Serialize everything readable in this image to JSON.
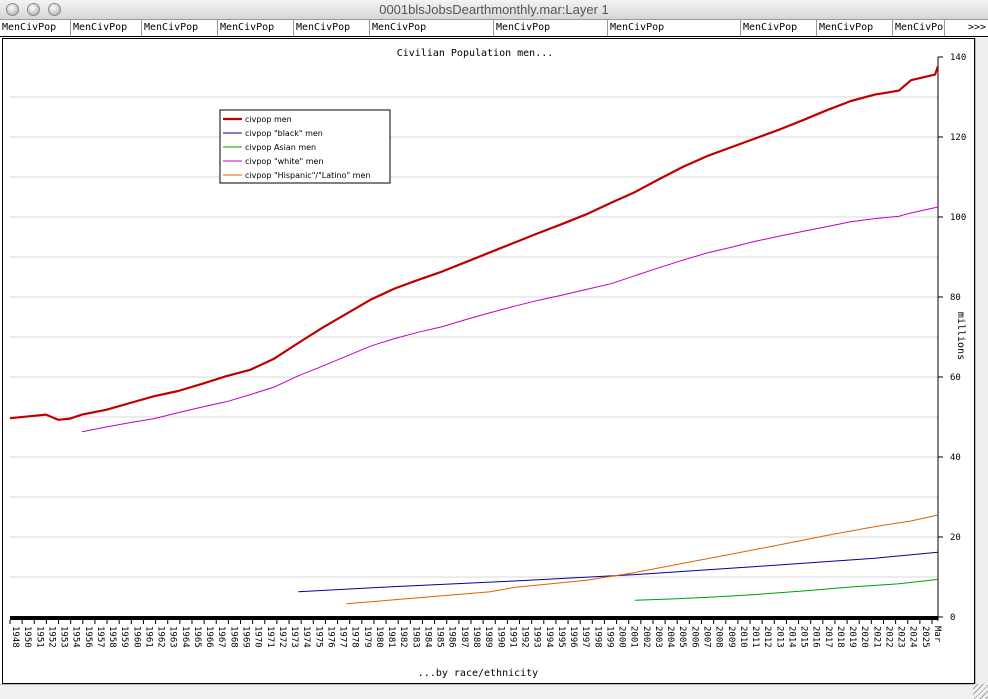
{
  "window": {
    "title": "0001blsJobsDearthmonthly.mar:Layer 1"
  },
  "tabs": [
    "MenCivPop",
    "MenCivPop",
    "MenCivPop",
    "MenCivPop",
    "MenCivPop",
    "MenCivPop",
    "MenCivPop",
    "MenCivPop",
    "MenCivPop",
    "MenCivPop",
    "MenCivPo"
  ],
  "tabs_more": ">>>",
  "chart_data": {
    "type": "line",
    "title": "Civilian Population men...",
    "xlabel": "...by race/ethnicity",
    "ylabel": "millions",
    "ylim": [
      0,
      140
    ],
    "yticks": [
      0,
      20,
      40,
      60,
      80,
      100,
      120,
      140
    ],
    "xlim": [
      1948,
      2025.25
    ],
    "xtick_labels": [
      "1948",
      "1950",
      "1951",
      "1952",
      "1953",
      "1954",
      "1956",
      "1957",
      "1958",
      "1959",
      "1960",
      "1961",
      "1962",
      "1963",
      "1964",
      "1965",
      "1966",
      "1967",
      "1968",
      "1969",
      "1970",
      "1971",
      "1972",
      "1973",
      "1974",
      "1975",
      "1976",
      "1977",
      "1978",
      "1979",
      "1980",
      "1981",
      "1982",
      "1983",
      "1984",
      "1985",
      "1986",
      "1987",
      "1988",
      "1989",
      "1990",
      "1991",
      "1992",
      "1993",
      "1994",
      "1995",
      "1996",
      "1997",
      "1998",
      "1999",
      "2000",
      "2001",
      "2002",
      "2003",
      "2004",
      "2005",
      "2006",
      "2007",
      "2008",
      "2009",
      "2010",
      "2011",
      "2012",
      "2013",
      "2014",
      "2015",
      "2016",
      "2017",
      "2018",
      "2019",
      "2020",
      "2021",
      "2022",
      "2023",
      "2024",
      "2025",
      "Mar"
    ],
    "grid": true,
    "legend_position": "top-left",
    "series": [
      {
        "name": "civpop men",
        "color": "#c00000",
        "x": [
          1948,
          1950,
          1951,
          1952,
          1953,
          1954,
          1956,
          1958,
          1960,
          1962,
          1964,
          1966,
          1968,
          1970,
          1972,
          1974,
          1976,
          1978,
          1980,
          1982,
          1984,
          1986,
          1988,
          1990,
          1992,
          1994,
          1996,
          1998,
          2000,
          2002,
          2004,
          2006,
          2008,
          2010,
          2012,
          2014,
          2016,
          2018,
          2020,
          2022,
          2023,
          2025,
          2025.25
        ],
        "values": [
          49.7,
          50.3,
          50.6,
          49.3,
          49.6,
          50.6,
          51.8,
          53.5,
          55.2,
          56.5,
          58.3,
          60.2,
          61.8,
          64.6,
          68.5,
          72.3,
          75.8,
          79.3,
          82.1,
          84.3,
          86.4,
          88.8,
          91.2,
          93.6,
          96.0,
          98.3,
          100.7,
          103.5,
          106.2,
          109.4,
          112.5,
          115.2,
          117.4,
          119.6,
          121.8,
          124.2,
          126.7,
          129.0,
          130.6,
          131.6,
          134.2,
          135.6,
          137.7
        ]
      },
      {
        "name": "civpop \"black\" men",
        "color": "#0000a0",
        "x": [
          1972,
          1980,
          1990,
          2000,
          2010,
          2020,
          2025.25
        ],
        "values": [
          6.3,
          7.6,
          9.0,
          10.6,
          12.6,
          14.7,
          16.2
        ]
      },
      {
        "name": "civpop Asian men",
        "color": "#00a000",
        "x": [
          2000,
          2003,
          2006,
          2010,
          2014,
          2018,
          2022,
          2025.25
        ],
        "values": [
          4.2,
          4.5,
          4.9,
          5.6,
          6.5,
          7.5,
          8.3,
          9.4
        ]
      },
      {
        "name": "civpop \"white\" men",
        "color": "#c000c0",
        "x": [
          1954,
          1956,
          1958,
          1960,
          1962,
          1964,
          1966,
          1968,
          1970,
          1972,
          1974,
          1976,
          1978,
          1980,
          1982,
          1984,
          1986,
          1988,
          1990,
          1992,
          1994,
          1996,
          1998,
          2000,
          2002,
          2004,
          2006,
          2008,
          2010,
          2012,
          2014,
          2016,
          2018,
          2020,
          2022,
          2023,
          2025.25
        ],
        "values": [
          46.3,
          47.5,
          48.6,
          49.6,
          51.1,
          52.5,
          53.8,
          55.6,
          57.5,
          60.3,
          62.7,
          65.2,
          67.7,
          69.6,
          71.2,
          72.6,
          74.4,
          76.1,
          77.7,
          79.2,
          80.5,
          81.9,
          83.3,
          85.3,
          87.3,
          89.2,
          91.0,
          92.4,
          93.9,
          95.2,
          96.4,
          97.6,
          98.8,
          99.6,
          100.2,
          101.0,
          102.5
        ]
      },
      {
        "name": "civpop \"Hispanic\"/\"Latino\" men",
        "color": "#e06000",
        "x": [
          1976,
          1978,
          1980,
          1984,
          1988,
          1990,
          1992,
          1996,
          2000,
          2004,
          2008,
          2012,
          2016,
          2020,
          2023,
          2025.25
        ],
        "values": [
          3.3,
          3.8,
          4.3,
          5.3,
          6.3,
          7.4,
          8.0,
          9.2,
          11.1,
          13.4,
          15.7,
          18.0,
          20.4,
          22.6,
          24.0,
          25.5
        ]
      }
    ]
  }
}
